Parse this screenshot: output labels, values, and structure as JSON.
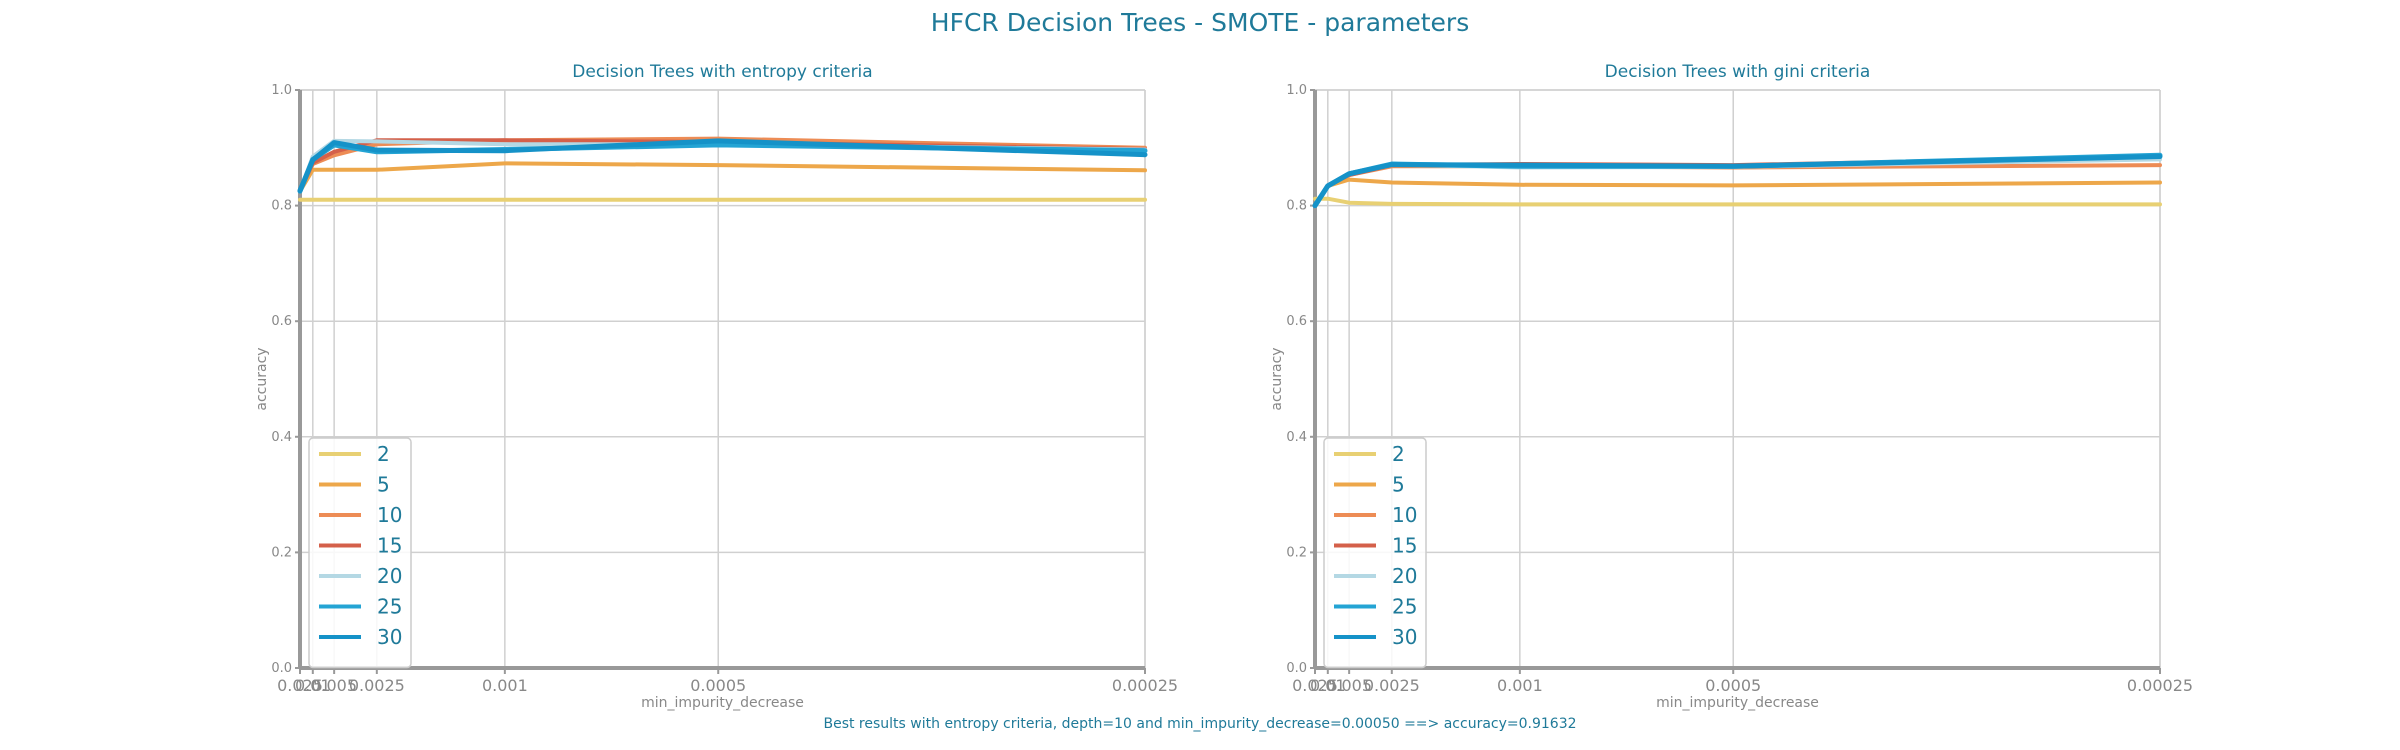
{
  "suptitle": "HFCR Decision Trees - SMOTE - parameters",
  "footer": "Best results with entropy criteria, depth=10 and min_impurity_decrease=0.00050 ==> accuracy=0.91632",
  "colors": {
    "title": "#1f7a99",
    "tick": "#888888",
    "grid": "#d0d0d0",
    "axis": "#999999",
    "series": [
      "#e8d073",
      "#eda74a",
      "#ed8c55",
      "#d4604a",
      "#b4d8e4",
      "#24a4d4",
      "#1592c8"
    ]
  },
  "chart_data": [
    {
      "type": "line",
      "title": "Decision Trees with entropy criteria",
      "xlabel": "min_impurity_decrease",
      "ylabel": "accuracy",
      "ylim": [
        0,
        1
      ],
      "yticks": [
        0.0,
        0.2,
        0.4,
        0.6,
        0.8,
        1.0
      ],
      "ytick_labels": [
        "0.0",
        "0.2",
        "0.4",
        "0.6",
        "0.8",
        "1.0"
      ],
      "xlim": [
        0.025,
        0.00025
      ],
      "xticks": [
        0.025,
        0.01,
        0.005,
        0.0025,
        0.001,
        0.0005,
        0.00025
      ],
      "xtick_labels": [
        "0.025",
        "0.01",
        "0.005",
        "0.0025",
        "0.001",
        "0.0005",
        "0.00025"
      ],
      "grid": true,
      "legend_position": "lower-left",
      "x": [
        0.025,
        0.01,
        0.005,
        0.0025,
        0.001,
        0.0005,
        0.00025
      ],
      "series": [
        {
          "name": "2",
          "values": [
            0.81,
            0.81,
            0.81,
            0.81,
            0.81,
            0.81,
            0.81
          ]
        },
        {
          "name": "5",
          "values": [
            0.825,
            0.862,
            0.862,
            0.862,
            0.873,
            0.87,
            0.861
          ]
        },
        {
          "name": "10",
          "values": [
            0.825,
            0.872,
            0.887,
            0.906,
            0.913,
            0.916,
            0.9
          ]
        },
        {
          "name": "15",
          "values": [
            0.825,
            0.874,
            0.893,
            0.913,
            0.913,
            0.91,
            0.898
          ]
        },
        {
          "name": "20",
          "values": [
            0.825,
            0.885,
            0.912,
            0.911,
            0.906,
            0.906,
            0.897
          ]
        },
        {
          "name": "25",
          "values": [
            0.825,
            0.88,
            0.905,
            0.893,
            0.897,
            0.905,
            0.895
          ]
        },
        {
          "name": "30",
          "values": [
            0.826,
            0.879,
            0.909,
            0.896,
            0.895,
            0.912,
            0.888
          ]
        }
      ]
    },
    {
      "type": "line",
      "title": "Decision Trees with gini criteria",
      "xlabel": "min_impurity_decrease",
      "ylabel": "accuracy",
      "ylim": [
        0,
        1
      ],
      "yticks": [
        0.0,
        0.2,
        0.4,
        0.6,
        0.8,
        1.0
      ],
      "ytick_labels": [
        "0.0",
        "0.2",
        "0.4",
        "0.6",
        "0.8",
        "1.0"
      ],
      "xlim": [
        0.025,
        0.00025
      ],
      "xticks": [
        0.025,
        0.01,
        0.005,
        0.0025,
        0.001,
        0.0005,
        0.00025
      ],
      "xtick_labels": [
        "0.025",
        "0.01",
        "0.005",
        "0.0025",
        "0.001",
        "0.0005",
        "0.00025"
      ],
      "grid": true,
      "legend_position": "lower-left",
      "x": [
        0.025,
        0.01,
        0.005,
        0.0025,
        0.001,
        0.0005,
        0.00025
      ],
      "series": [
        {
          "name": "2",
          "values": [
            0.812,
            0.812,
            0.805,
            0.803,
            0.802,
            0.802,
            0.802
          ]
        },
        {
          "name": "5",
          "values": [
            0.8,
            0.834,
            0.845,
            0.84,
            0.836,
            0.835,
            0.84
          ]
        },
        {
          "name": "10",
          "values": [
            0.8,
            0.834,
            0.853,
            0.868,
            0.868,
            0.866,
            0.87
          ]
        },
        {
          "name": "15",
          "values": [
            0.8,
            0.834,
            0.853,
            0.87,
            0.872,
            0.87,
            0.885
          ]
        },
        {
          "name": "20",
          "values": [
            0.8,
            0.834,
            0.855,
            0.871,
            0.866,
            0.867,
            0.88
          ]
        },
        {
          "name": "25",
          "values": [
            0.8,
            0.834,
            0.855,
            0.872,
            0.868,
            0.868,
            0.887
          ]
        },
        {
          "name": "30",
          "values": [
            0.8,
            0.834,
            0.855,
            0.871,
            0.87,
            0.868,
            0.885
          ]
        }
      ]
    }
  ]
}
